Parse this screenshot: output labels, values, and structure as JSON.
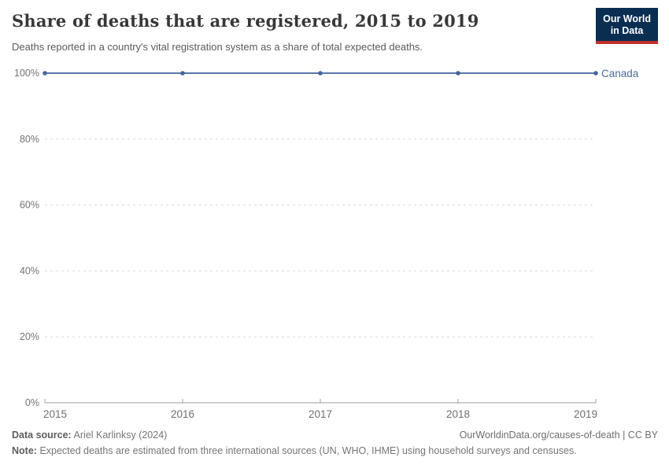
{
  "header": {
    "title": "Share of deaths that are registered, 2015 to 2019",
    "subtitle": "Deaths reported in a country's vital registration system as a share of total expected deaths.",
    "logo": {
      "line1": "Our World",
      "line2": "in Data"
    }
  },
  "chart_data": {
    "type": "line",
    "title": "Share of deaths that are registered, 2015 to 2019",
    "x": [
      2015,
      2016,
      2017,
      2018,
      2019
    ],
    "x_labels": [
      "2015",
      "2016",
      "2017",
      "2018",
      "2019"
    ],
    "series": [
      {
        "name": "Canada",
        "values": [
          100,
          100,
          100,
          100,
          100
        ]
      }
    ],
    "ylim": [
      0,
      100
    ],
    "yticks": [
      0,
      20,
      40,
      60,
      80,
      100
    ],
    "ytick_labels": [
      "0%",
      "20%",
      "40%",
      "60%",
      "80%",
      "100%"
    ],
    "xlabel": "",
    "ylabel": "",
    "grid": "horizontal-dashed",
    "legend_position": "label-at-line-end-right"
  },
  "footer": {
    "source_label": "Data source:",
    "source_text": "Ariel Karlinksy (2024)",
    "right_text": "OurWorldinData.org/causes-of-death | CC BY",
    "note_label": "Note:",
    "note_text": "Expected deaths are estimated from three international sources (UN, WHO, IHME) using household surveys and censuses."
  },
  "colors": {
    "line": "#5878a8",
    "marker": "#44669e",
    "entity_label": "#4c6a9c",
    "grid": "#d9d9d9",
    "axis": "#9e9e9e",
    "ytick_text": "#737373",
    "xtick_text": "#6f6f6f",
    "title_text": "#383838",
    "subtitle_text": "#5a5a5a",
    "logo_bg": "#0a2e52",
    "logo_red": "#c0302c"
  }
}
